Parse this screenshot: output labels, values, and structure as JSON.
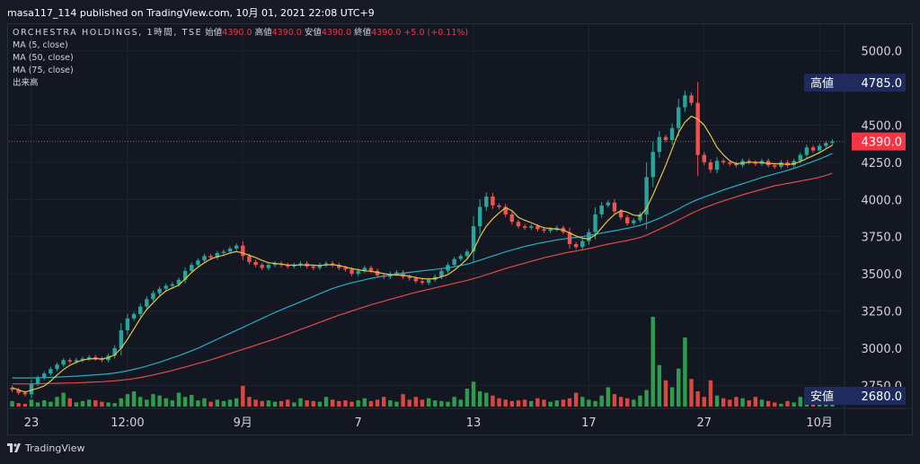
{
  "publisher": "masa117_114 published on TradingView.com, 10月 01, 2021 22:08 UTC+9",
  "legend": {
    "symbol": "ORCHESTRA HOLDINGS, 1時間, TSE",
    "ohlc": [
      {
        "label": "始値",
        "value": "4390.0"
      },
      {
        "label": "高値",
        "value": "4390.0"
      },
      {
        "label": "安値",
        "value": "4390.0"
      },
      {
        "label": "終値",
        "value": "4390.0"
      }
    ],
    "change": "+5.0 (+0.11%)",
    "indicators": [
      "MA (5, close)",
      "MA (50, close)",
      "MA (75, close)",
      "出来高"
    ]
  },
  "footer": {
    "brand": "TradingView"
  },
  "colors": {
    "up": "#26a69a",
    "down": "#ef5350",
    "vol_up": "#2e9b4f",
    "vol_down": "#d9473f",
    "ma5": "#e8c547",
    "ma50": "#22b0c6",
    "ma75": "#e24a45",
    "last": "#f23645",
    "label_bg": "#1e2b5c"
  },
  "chart_data": {
    "type": "candlestick",
    "y_axis": {
      "min": 2680,
      "max": 5100,
      "ticks": [
        2750,
        3000,
        3250,
        3500,
        3750,
        4000,
        4250,
        4500,
        5000
      ]
    },
    "x_ticks": [
      {
        "i": 3,
        "label": "23"
      },
      {
        "i": 18,
        "label": "12:00"
      },
      {
        "i": 36,
        "label": "9月"
      },
      {
        "i": 54,
        "label": "7"
      },
      {
        "i": 72,
        "label": "13"
      },
      {
        "i": 90,
        "label": "17"
      },
      {
        "i": 108,
        "label": "27"
      },
      {
        "i": 126,
        "label": "10月"
      }
    ],
    "high_label": {
      "text": "高値",
      "value": "4785.0"
    },
    "low_label": {
      "text": "安値",
      "value": "2680.0"
    },
    "last_price": "4390.0",
    "closes": [
      2720,
      2700,
      2690,
      2760,
      2800,
      2830,
      2860,
      2890,
      2920,
      2910,
      2920,
      2930,
      2940,
      2930,
      2920,
      2950,
      3000,
      3120,
      3200,
      3230,
      3280,
      3330,
      3370,
      3400,
      3420,
      3430,
      3460,
      3520,
      3560,
      3590,
      3620,
      3610,
      3640,
      3650,
      3670,
      3690,
      3620,
      3580,
      3560,
      3540,
      3560,
      3570,
      3560,
      3550,
      3560,
      3570,
      3550,
      3540,
      3560,
      3570,
      3560,
      3540,
      3530,
      3500,
      3520,
      3540,
      3520,
      3490,
      3480,
      3500,
      3510,
      3480,
      3470,
      3450,
      3440,
      3460,
      3480,
      3520,
      3560,
      3600,
      3620,
      3650,
      3820,
      3950,
      4020,
      3960,
      3950,
      3900,
      3850,
      3820,
      3810,
      3820,
      3800,
      3790,
      3800,
      3810,
      3780,
      3700,
      3680,
      3720,
      3780,
      3900,
      3960,
      3980,
      3920,
      3880,
      3840,
      3860,
      3900,
      4150,
      4320,
      4420,
      4400,
      4480,
      4620,
      4700,
      4650,
      4300,
      4250,
      4200,
      4260,
      4250,
      4240,
      4230,
      4260,
      4250,
      4240,
      4260,
      4230,
      4220,
      4250,
      4230,
      4260,
      4300,
      4350,
      4330,
      4360,
      4380,
      4390
    ],
    "volumes": [
      8,
      5,
      4,
      10,
      6,
      9,
      7,
      14,
      20,
      12,
      6,
      8,
      10,
      9,
      7,
      6,
      5,
      12,
      18,
      22,
      14,
      10,
      18,
      16,
      12,
      9,
      20,
      14,
      17,
      9,
      12,
      7,
      10,
      8,
      10,
      12,
      30,
      14,
      10,
      8,
      9,
      7,
      8,
      10,
      6,
      12,
      9,
      8,
      7,
      14,
      10,
      8,
      9,
      7,
      9,
      12,
      8,
      10,
      14,
      9,
      7,
      18,
      10,
      14,
      10,
      12,
      9,
      8,
      7,
      14,
      10,
      26,
      36,
      22,
      20,
      16,
      12,
      10,
      8,
      9,
      10,
      8,
      12,
      10,
      7,
      9,
      10,
      12,
      20,
      14,
      10,
      8,
      16,
      28,
      18,
      14,
      12,
      10,
      16,
      24,
      130,
      60,
      38,
      28,
      55,
      100,
      40,
      22,
      14,
      38,
      16,
      12,
      10,
      14,
      12,
      9,
      14,
      10,
      8,
      6,
      4,
      8,
      6,
      14,
      10,
      6,
      4,
      5,
      6
    ],
    "ma5": [
      2735,
      2720,
      2705,
      2718,
      2730,
      2746,
      2780,
      2820,
      2856,
      2885,
      2905,
      2920,
      2928,
      2930,
      2928,
      2935,
      2955,
      3000,
      3060,
      3130,
      3200,
      3260,
      3305,
      3350,
      3385,
      3405,
      3425,
      3465,
      3510,
      3545,
      3575,
      3600,
      3615,
      3625,
      3640,
      3650,
      3640,
      3625,
      3610,
      3590,
      3575,
      3570,
      3565,
      3560,
      3558,
      3560,
      3560,
      3558,
      3556,
      3560,
      3562,
      3556,
      3546,
      3535,
      3528,
      3520,
      3517,
      3510,
      3502,
      3495,
      3492,
      3490,
      3485,
      3475,
      3468,
      3465,
      3468,
      3480,
      3495,
      3525,
      3560,
      3600,
      3660,
      3750,
      3820,
      3870,
      3910,
      3945,
      3925,
      3880,
      3860,
      3845,
      3825,
      3810,
      3805,
      3800,
      3795,
      3775,
      3755,
      3740,
      3735,
      3760,
      3810,
      3860,
      3900,
      3925,
      3915,
      3895,
      3890,
      3940,
      4030,
      4130,
      4230,
      4340,
      4450,
      4520,
      4560,
      4540,
      4500,
      4430,
      4350,
      4300,
      4260,
      4240,
      4245,
      4250,
      4250,
      4247,
      4243,
      4240,
      4240,
      4235,
      4240,
      4255,
      4275,
      4295,
      4315,
      4340,
      4365
    ],
    "ma50": [
      2800,
      2800,
      2800,
      2800,
      2801,
      2802,
      2804,
      2806,
      2808,
      2810,
      2812,
      2815,
      2818,
      2821,
      2824,
      2828,
      2833,
      2840,
      2848,
      2858,
      2868,
      2880,
      2893,
      2906,
      2920,
      2935,
      2950,
      2966,
      2983,
      3000,
      3020,
      3040,
      3060,
      3080,
      3100,
      3120,
      3140,
      3160,
      3180,
      3200,
      3220,
      3240,
      3258,
      3276,
      3294,
      3312,
      3330,
      3348,
      3366,
      3384,
      3402,
      3415,
      3428,
      3440,
      3450,
      3460,
      3470,
      3478,
      3485,
      3492,
      3498,
      3504,
      3510,
      3515,
      3520,
      3525,
      3530,
      3535,
      3540,
      3548,
      3556,
      3565,
      3578,
      3592,
      3606,
      3620,
      3634,
      3648,
      3660,
      3672,
      3684,
      3694,
      3704,
      3712,
      3720,
      3728,
      3735,
      3740,
      3745,
      3750,
      3758,
      3766,
      3774,
      3782,
      3790,
      3798,
      3806,
      3816,
      3826,
      3840,
      3856,
      3874,
      3894,
      3914,
      3936,
      3960,
      3982,
      4000,
      4016,
      4032,
      4048,
      4064,
      4078,
      4092,
      4106,
      4120,
      4134,
      4148,
      4160,
      4172,
      4184,
      4196,
      4210,
      4224,
      4240,
      4256,
      4272,
      4290,
      4310
    ],
    "ma75": [
      2760,
      2760,
      2760,
      2760,
      2761,
      2762,
      2763,
      2764,
      2765,
      2766,
      2767,
      2769,
      2771,
      2773,
      2775,
      2778,
      2781,
      2785,
      2790,
      2796,
      2803,
      2811,
      2820,
      2830,
      2840,
      2850,
      2862,
      2874,
      2886,
      2898,
      2910,
      2922,
      2936,
      2950,
      2964,
      2978,
      2992,
      3006,
      3020,
      3034,
      3048,
      3062,
      3078,
      3094,
      3110,
      3126,
      3142,
      3158,
      3174,
      3190,
      3206,
      3222,
      3236,
      3250,
      3264,
      3278,
      3292,
      3304,
      3316,
      3328,
      3340,
      3352,
      3364,
      3376,
      3386,
      3396,
      3406,
      3416,
      3426,
      3436,
      3446,
      3456,
      3468,
      3480,
      3494,
      3508,
      3522,
      3536,
      3548,
      3560,
      3572,
      3584,
      3596,
      3608,
      3618,
      3628,
      3638,
      3646,
      3654,
      3662,
      3670,
      3680,
      3690,
      3700,
      3708,
      3716,
      3724,
      3734,
      3744,
      3760,
      3780,
      3800,
      3820,
      3840,
      3862,
      3884,
      3906,
      3926,
      3944,
      3960,
      3976,
      3990,
      4004,
      4018,
      4032,
      4044,
      4056,
      4068,
      4080,
      4092,
      4100,
      4108,
      4116,
      4124,
      4132,
      4140,
      4150,
      4162,
      4176
    ]
  }
}
